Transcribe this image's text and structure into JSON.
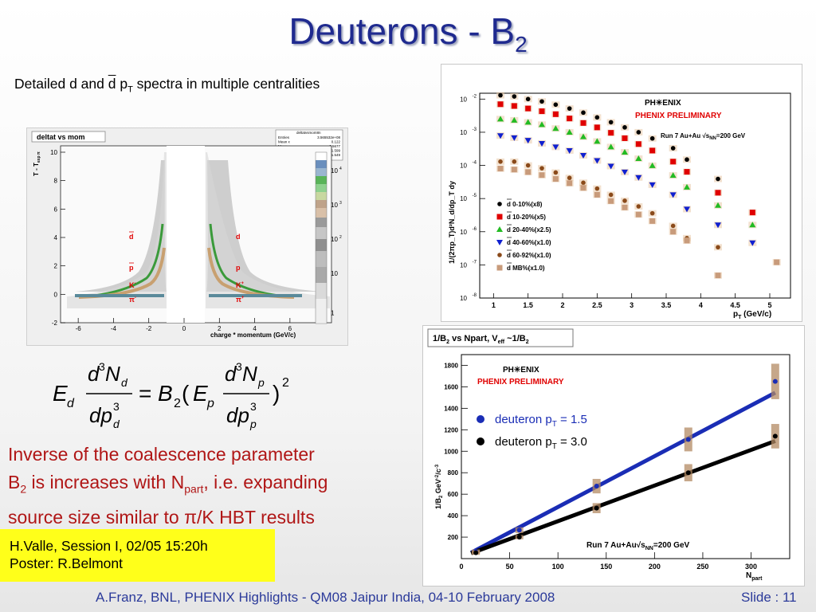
{
  "slide": {
    "title_main": "Deuterons - B",
    "title_sub": "2",
    "subtitle_pre": "Detailed d and ",
    "subtitle_dbar": "d",
    "subtitle_mid": " p",
    "subtitle_T": "T",
    "subtitle_post": " spectra in multiple centralities",
    "conclusion_l1": "Inverse of the coalescence parameter",
    "conclusion_l2a": "B",
    "conclusion_l2sub": "2",
    "conclusion_l2b": " is increases with N",
    "conclusion_l2sub2": "part",
    "conclusion_l2c": ", i.e. expanding",
    "conclusion_l3": "source size similar to π/K HBT results",
    "info_line1": "H.Valle, Session I, 02/05 15:20h",
    "info_line2": "Poster: R.Belmont",
    "footer": "A.Franz, BNL, PHENIX Highlights - QM08 Jaipur India, 04-10 February 2008",
    "slide_number": "Slide : 11"
  },
  "pid_plot": {
    "tab_label": "deltat vs mom",
    "stats_title": "deltatvsmom8n",
    "stats": [
      [
        "Entries",
        "3.565532e+08"
      ],
      [
        "Mean x",
        "0.122"
      ],
      [
        "Mean y",
        "0.5677"
      ],
      [
        "RMS x",
        "1.599"
      ],
      [
        "RMS y",
        "1.549"
      ]
    ],
    "ylabel": "T - T",
    "ylabel_sub": "exp π",
    "xlabel": "charge * momentum (GeV/c)",
    "xticks": [
      "-6",
      "-4",
      "-2",
      "0",
      "2",
      "4",
      "6"
    ],
    "yticks": [
      "10",
      "8",
      "6",
      "4",
      "2",
      "0",
      "-2"
    ],
    "zticks": [
      "10",
      "10",
      "10",
      "10",
      "1"
    ],
    "zticks_exp": [
      "4",
      "3",
      "2",
      "",
      ""
    ],
    "labels_neg": [
      "d",
      "p",
      "K",
      "π"
    ],
    "labels_pos": [
      "d",
      "p",
      "K",
      "π"
    ],
    "label_neg_suffix": [
      "",
      "",
      "-",
      "-"
    ],
    "label_pos_suffix": [
      "",
      "",
      "+",
      "+"
    ],
    "label_neg_bar": [
      true,
      true,
      false,
      false
    ]
  },
  "spectra_plot": {
    "logo": "PH✳ENIX",
    "preliminary": "PHENIX PRELIMINARY",
    "run": "Run 7 Au+Au √s",
    "run_sub": "NN",
    "run_end": "=200 GeV",
    "ylabel": "1/(2πp_T)d²N_d/dp_T dy",
    "xlabel": "p",
    "xlabel_sub": "T",
    "xlabel_unit": " (GeV/c)",
    "xticks": [
      "1",
      "1.5",
      "2",
      "2.5",
      "3",
      "3.5",
      "4",
      "4.5",
      "5"
    ],
    "ytick_exps": [
      "-2",
      "-3",
      "-4",
      "-5",
      "-6",
      "-7",
      "-8"
    ]
  },
  "b2_plot": {
    "tab_label_pre": "1/B",
    "tab_label_sub": "2",
    "tab_label_mid": " vs Npart, V",
    "tab_label_sub2": "eff",
    "tab_label_end": " ~1/B",
    "tab_label_sub3": "2",
    "logo": "PH✳ENIX",
    "preliminary": "PHENIX PRELIMINARY",
    "ylabel": "1/B",
    "ylabel_sub": "2",
    "ylabel_unit": " GeV",
    "ylabel_sup": "-2",
    "ylabel_unit2": "/c",
    "ylabel_sup2": "-3",
    "xlabel": "N",
    "xlabel_sub": "part",
    "run": "Run 7 Au+Au√s",
    "run_sub": "NN",
    "run_end": "=200 GeV",
    "xticks": [
      "0",
      "50",
      "100",
      "150",
      "200",
      "250",
      "300"
    ],
    "yticks": [
      "200",
      "400",
      "600",
      "800",
      "1000",
      "1200",
      "1400",
      "1600",
      "1800"
    ]
  },
  "chart_data": [
    {
      "type": "scatter",
      "title": "",
      "xlabel": "p_T (GeV/c)",
      "ylabel": "1/(2πp_T)d²N_d/dp_T dy",
      "log_y": true,
      "xlim": [
        0.8,
        5.3
      ],
      "ylim": [
        1e-08,
        0.015
      ],
      "legend_position": "left-middle",
      "x": [
        1.1,
        1.3,
        1.5,
        1.7,
        1.9,
        2.1,
        2.3,
        2.5,
        2.7,
        2.9,
        3.1,
        3.3,
        3.6,
        3.8,
        4.25,
        4.75,
        5.1
      ],
      "series": [
        {
          "name": "d 0-10%(x8)",
          "color": "#000000",
          "marker": "circle",
          "values": [
            0.013,
            0.012,
            0.01,
            0.0085,
            0.0068,
            0.0052,
            0.0039,
            0.0028,
            0.002,
            0.0014,
            0.001,
            0.00065,
            0.00033,
            0.00015,
            3.9e-05,
            null,
            null
          ]
        },
        {
          "name": "d 10-20%(x5)",
          "color": "#e00000",
          "marker": "square",
          "values": [
            0.007,
            0.0062,
            0.0052,
            0.0043,
            0.0035,
            0.0026,
            0.0019,
            0.0014,
            0.00096,
            0.00066,
            0.00044,
            0.00028,
            0.00013,
            6.4e-05,
            1.5e-05,
            3.8e-06,
            null
          ]
        },
        {
          "name": "d 20-40%(x2.5)",
          "color": "#22bb22",
          "marker": "triangle",
          "values": [
            0.0025,
            0.0023,
            0.002,
            0.0017,
            0.0013,
            0.001,
            0.00073,
            0.00053,
            0.00036,
            0.00025,
            0.00016,
            9.8e-05,
            5e-05,
            2.2e-05,
            6.2e-06,
            1.6e-06,
            null
          ]
        },
        {
          "name": "d 40-60%(x1.0)",
          "color": "#1020d0",
          "marker": "triangle-down",
          "values": [
            0.00079,
            0.00068,
            0.00057,
            0.00046,
            0.00036,
            0.00028,
            0.0002,
            0.00014,
            9.5e-05,
            6.3e-05,
            4.3e-05,
            2.6e-05,
            1.3e-05,
            4.8e-06,
            1.6e-06,
            4.6e-07,
            null
          ]
        },
        {
          "name": "d 60-92%(x1.0)",
          "color": "#8a4a1a",
          "marker": "circle",
          "values": [
            0.00013,
            0.00013,
            0.0001,
            8.2e-05,
            6.1e-05,
            4.2e-05,
            3e-05,
            2e-05,
            1.3e-05,
            8.6e-06,
            5.8e-06,
            3.6e-06,
            1.5e-06,
            6.4e-07,
            3.4e-07,
            null,
            null
          ]
        },
        {
          "name": "d MB%(x1.0)",
          "color": "#c89b7b",
          "marker": "square",
          "values": [
            8e-05,
            7.5e-05,
            6.3e-05,
            5.1e-05,
            3.9e-05,
            2.9e-05,
            2.1e-05,
            1.3e-05,
            8.4e-06,
            5.4e-06,
            3.3e-06,
            2.1e-06,
            1e-06,
            5.4e-07,
            4.8e-08,
            null,
            1.2e-07
          ]
        }
      ]
    },
    {
      "type": "scatter",
      "title": "",
      "xlabel": "N_part",
      "ylabel": "1/B_2 GeV^-2/c^-3",
      "xlim": [
        0,
        340
      ],
      "ylim": [
        0,
        1900
      ],
      "legend_position": "top-right",
      "series": [
        {
          "name": "deuteron p_T = 1.5",
          "color": "#1a2db5",
          "x": [
            15,
            60,
            140,
            235,
            325
          ],
          "y": [
            65,
            265,
            675,
            1110,
            1650
          ],
          "fit": {
            "x": [
              10,
              325
            ],
            "y": [
              55,
              1545
            ]
          }
        },
        {
          "name": "deuteron p_T = 3.0",
          "color": "#000000",
          "x": [
            15,
            60,
            140,
            235,
            325
          ],
          "y": [
            55,
            200,
            470,
            800,
            1140
          ],
          "fit": {
            "x": [
              10,
              325
            ],
            "y": [
              50,
              1095
            ]
          }
        }
      ]
    }
  ]
}
